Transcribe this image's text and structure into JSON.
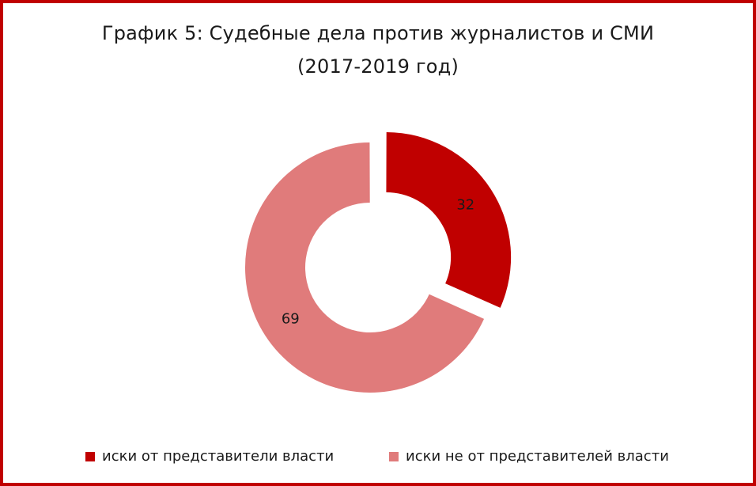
{
  "chart_data": {
    "type": "pie",
    "variant": "donut",
    "title": "График 5: Судебные дела против журналистов  и СМИ",
    "subtitle": "(2017-2019 год)",
    "series": [
      {
        "name": "иски от представители власти",
        "value": 32,
        "color": "#c00000",
        "exploded": true
      },
      {
        "name": "иски не от представителей власти",
        "value": 69,
        "color": "#e07b7b",
        "exploded": false
      }
    ],
    "legend_position": "bottom"
  }
}
